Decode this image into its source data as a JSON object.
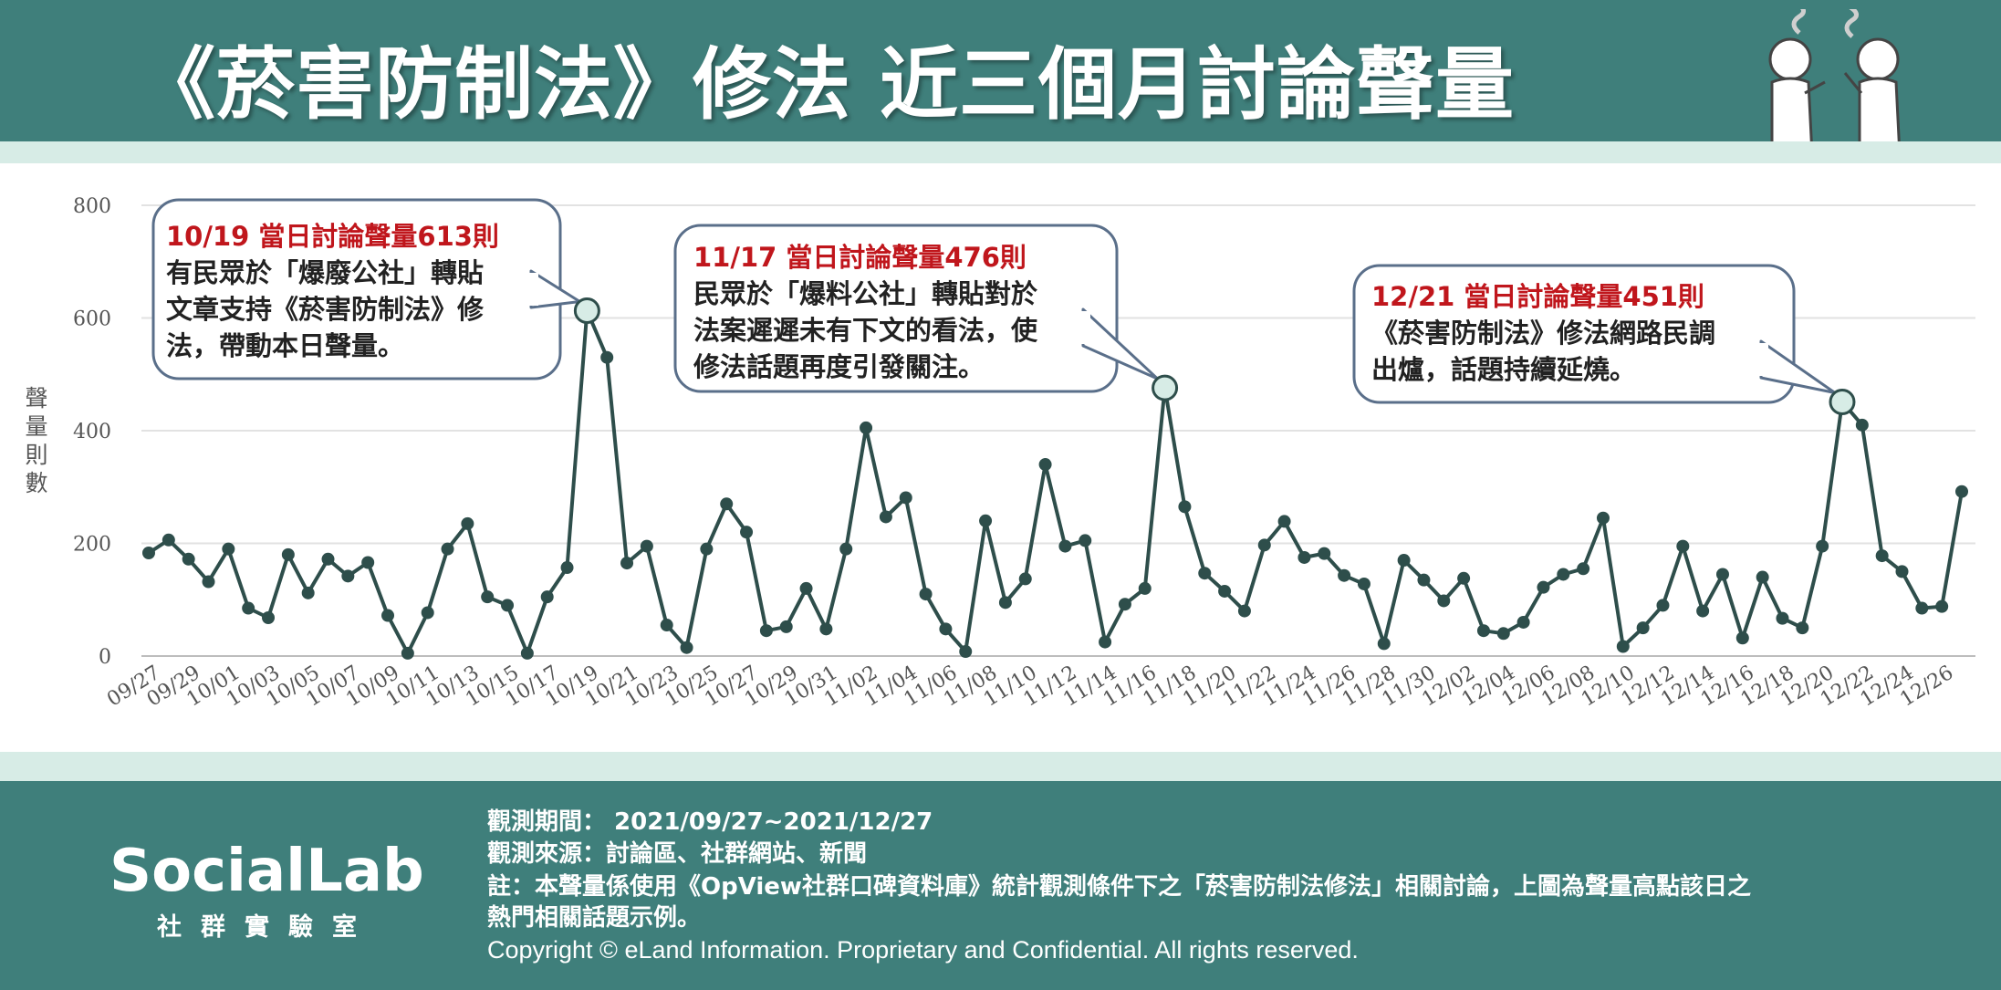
{
  "header": {
    "title": "《菸害防制法》修法 近三個月討論聲量",
    "bg_color": "#3f7f7b",
    "illustration": "two-smokers-icon"
  },
  "chart_data": {
    "type": "line",
    "title": "《菸害防制法》修法 近三個月討論聲量",
    "xlabel": "",
    "ylabel": "聲量則數",
    "ylim": [
      0,
      800
    ],
    "yticks": [
      0,
      200,
      400,
      600,
      800
    ],
    "grid": true,
    "x_tick_labels": [
      "09/27",
      "09/29",
      "10/01",
      "10/03",
      "10/05",
      "10/07",
      "10/09",
      "10/11",
      "10/13",
      "10/15",
      "10/17",
      "10/19",
      "10/21",
      "10/23",
      "10/25",
      "10/27",
      "10/29",
      "10/31",
      "11/02",
      "11/04",
      "11/06",
      "11/08",
      "11/10",
      "11/12",
      "11/14",
      "11/16",
      "11/18",
      "11/20",
      "11/22",
      "11/24",
      "11/26",
      "11/28",
      "11/30",
      "12/02",
      "12/04",
      "12/06",
      "12/08",
      "12/10",
      "12/12",
      "12/14",
      "12/16",
      "12/18",
      "12/20",
      "12/22",
      "12/24",
      "12/26"
    ],
    "x": [
      "09/27",
      "09/28",
      "09/29",
      "09/30",
      "10/01",
      "10/02",
      "10/03",
      "10/04",
      "10/05",
      "10/06",
      "10/07",
      "10/08",
      "10/09",
      "10/10",
      "10/11",
      "10/12",
      "10/13",
      "10/14",
      "10/15",
      "10/16",
      "10/17",
      "10/18",
      "10/19",
      "10/20",
      "10/21",
      "10/22",
      "10/23",
      "10/24",
      "10/25",
      "10/26",
      "10/27",
      "10/28",
      "10/29",
      "10/30",
      "10/31",
      "11/01",
      "11/02",
      "11/03",
      "11/04",
      "11/05",
      "11/06",
      "11/07",
      "11/08",
      "11/09",
      "11/10",
      "11/11",
      "11/12",
      "11/13",
      "11/14",
      "11/15",
      "11/16",
      "11/17",
      "11/18",
      "11/19",
      "11/20",
      "11/21",
      "11/22",
      "11/23",
      "11/24",
      "11/25",
      "11/26",
      "11/27",
      "11/28",
      "11/29",
      "11/30",
      "12/01",
      "12/02",
      "12/03",
      "12/04",
      "12/05",
      "12/06",
      "12/07",
      "12/08",
      "12/09",
      "12/10",
      "12/11",
      "12/12",
      "12/13",
      "12/14",
      "12/15",
      "12/16",
      "12/17",
      "12/18",
      "12/19",
      "12/20",
      "12/21",
      "12/22",
      "12/23",
      "12/24",
      "12/25",
      "12/26",
      "12/27"
    ],
    "series": [
      {
        "name": "",
        "color": "#2e4e4b",
        "values": [
          183,
          206,
          172,
          132,
          190,
          85,
          68,
          180,
          112,
          172,
          142,
          166,
          72,
          5,
          77,
          190,
          235,
          105,
          90,
          5,
          105,
          157,
          613,
          530,
          165,
          195,
          55,
          15,
          190,
          270,
          220,
          45,
          52,
          120,
          48,
          190,
          405,
          247,
          281,
          110,
          48,
          8,
          240,
          95,
          137,
          340,
          195,
          205,
          25,
          92,
          120,
          476,
          265,
          147,
          115,
          80,
          197,
          239,
          175,
          182,
          143,
          128,
          22,
          170,
          135,
          98,
          138,
          45,
          40,
          60,
          122,
          145,
          155,
          245,
          17,
          50,
          90,
          195,
          80,
          145,
          32,
          140,
          67,
          50,
          195,
          451,
          410,
          178,
          150,
          85,
          88,
          292
        ]
      }
    ],
    "highlights": [
      {
        "x": "10/19",
        "value": 613,
        "headline": "10/19 當日討論聲量613則",
        "lines": [
          "有民眾於「爆廢公社」轉貼",
          "文章支持《菸害防制法》修",
          "法，帶動本日聲量。"
        ]
      },
      {
        "x": "11/17",
        "value": 476,
        "headline": "11/17 當日討論聲量476則",
        "lines": [
          "民眾於「爆料公社」轉貼對於",
          "法案遲遲未有下文的看法，使",
          "修法話題再度引發關注。"
        ]
      },
      {
        "x": "12/21",
        "value": 451,
        "headline": "12/21 當日討論聲量451則",
        "lines": [
          "《菸害防制法》修法網路民調",
          "出爐，話題持續延燒。"
        ]
      }
    ],
    "highlight_color": "#d7ece6",
    "highlight_text_color": "#c0161c"
  },
  "footer": {
    "logo_text": "SocialLab",
    "logo_sub": "社群實驗室",
    "period": "觀測期間： 2021/09/27~2021/12/27",
    "source": "觀測來源：討論區、社群網站、新聞",
    "note_line1": "註：本聲量係使用《OpView社群口碑資料庫》統計觀測條件下之「菸害防制法修法」相關討論，上圖為聲量高點該日之",
    "note_line2": "熱門相關話題示例。",
    "copyright": "Copyright © eLand Information. Proprietary and Confidential. All rights reserved."
  }
}
